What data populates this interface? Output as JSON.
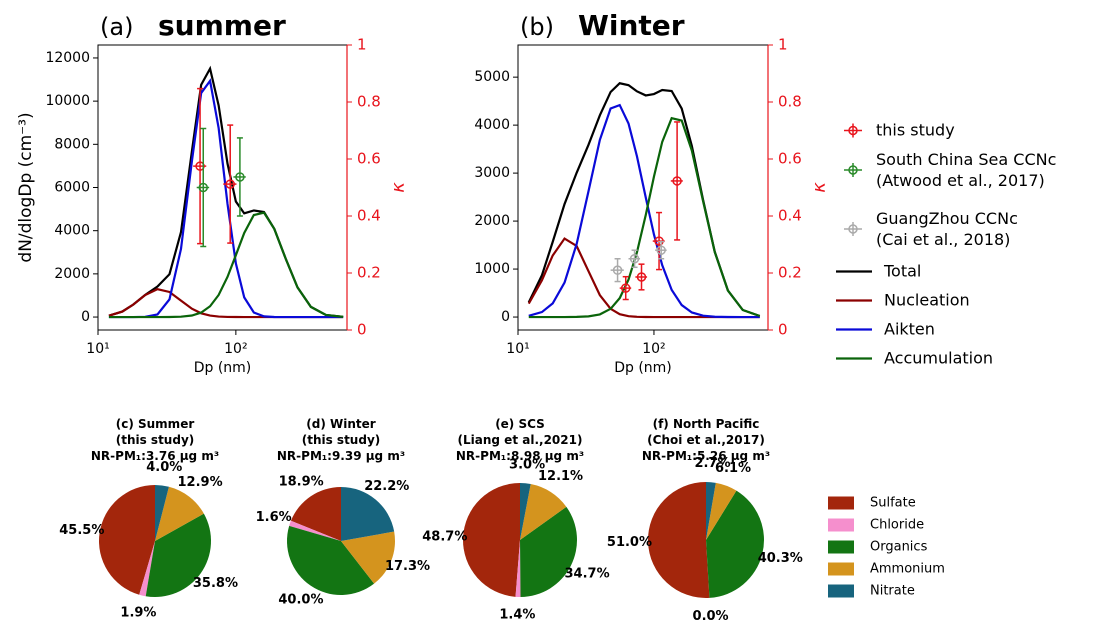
{
  "chart_data": [
    {
      "type": "line",
      "label": "(a)",
      "title": "summer",
      "xlabel": "Dp (nm)",
      "ylabel": "dN/dlogDp (cm⁻³)",
      "y2label": "κ",
      "log_x": true,
      "xlim": [
        10,
        640
      ],
      "xticks": [
        {
          "value": 10,
          "label": "10¹"
        },
        {
          "value": 100,
          "label": "10²"
        }
      ],
      "ylim": [
        -600,
        12600
      ],
      "yticks": [
        0,
        2000,
        4000,
        6000,
        8000,
        10000,
        12000
      ],
      "y2lim": [
        0,
        1
      ],
      "y2ticks": [
        0,
        0.2,
        0.4,
        0.6,
        0.8,
        1
      ],
      "y2color": "#e8141c",
      "x": [
        12,
        15,
        18,
        22,
        27,
        33,
        40,
        48,
        56,
        65,
        75,
        87,
        100,
        115,
        135,
        160,
        190,
        230,
        280,
        350,
        450,
        600
      ],
      "series": [
        {
          "color": "#000000",
          "values": [
            64,
            254,
            574,
            1028,
            1413,
            1984,
            3937,
            7683,
            10752,
            11506,
            9797,
            7104,
            5352,
            4803,
            4937,
            4865,
            4086,
            2700,
            1374,
            470,
            95,
            9
          ]
        },
        {
          "color": "#8b0000",
          "values": [
            64,
            254,
            574,
            1018,
            1293,
            1161,
            763,
            385,
            174,
            67,
            22,
            6,
            1,
            0,
            0,
            0,
            0,
            0,
            0,
            0,
            0,
            0
          ]
        },
        {
          "color": "#0a0ad8",
          "values": [
            0,
            0,
            0,
            10,
            120,
            820,
            3158,
            7227,
            10372,
            10939,
            8753,
            5237,
            2485,
            911,
            211,
            31,
            3,
            0,
            0,
            0,
            0,
            0
          ]
        },
        {
          "color": "#0a640a",
          "values": [
            0,
            0,
            0,
            0,
            0,
            3,
            16,
            71,
            206,
            500,
            1022,
            1861,
            2866,
            3892,
            4726,
            4834,
            4083,
            2700,
            1374,
            470,
            95,
            9
          ]
        }
      ],
      "error_series": [
        {
          "color": "#e8141c",
          "axis": "y2",
          "x": [
            55,
            91
          ],
          "xerr": [
            6,
            10
          ],
          "values": [
            0.575,
            0.512
          ],
          "yerr": [
            0.272,
            0.207
          ]
        },
        {
          "name": "South China Sea CCNc\n(Atwood et al., 2017)",
          "color": "#2a8a2a",
          "axis": "y2",
          "x": [
            58,
            107
          ],
          "xerr": [
            6,
            11
          ],
          "values": [
            0.5,
            0.537
          ],
          "yerr": [
            0.207,
            0.137
          ]
        }
      ]
    },
    {
      "type": "line",
      "label": "(b)",
      "title": "Winter",
      "xlabel": "Dp (nm)",
      "y2label": "κ",
      "log_x": true,
      "xlim": [
        10,
        690
      ],
      "xticks": [
        {
          "value": 10,
          "label": "10¹"
        },
        {
          "value": 100,
          "label": "10²"
        }
      ],
      "ylim": [
        -270,
        5670
      ],
      "yticks": [
        0,
        1000,
        2000,
        3000,
        4000,
        5000
      ],
      "y2lim": [
        0,
        1
      ],
      "y2ticks": [
        0,
        0.2,
        0.4,
        0.6,
        0.8,
        1
      ],
      "y2color": "#e8141c",
      "x": [
        12,
        15,
        18,
        22,
        27,
        33,
        40,
        48,
        56,
        65,
        75,
        87,
        100,
        115,
        135,
        160,
        190,
        230,
        280,
        350,
        450,
        600
      ],
      "series": [
        {
          "name": "Total",
          "color": "#000000",
          "values": [
            305,
            871,
            1567,
            2355,
            3007,
            3590,
            4204,
            4691,
            4873,
            4833,
            4704,
            4619,
            4648,
            4731,
            4711,
            4345,
            3564,
            2438,
            1361,
            553,
            147,
            22
          ]
        },
        {
          "name": "Nucleation",
          "color": "#8b0000",
          "values": [
            280,
            767,
            1283,
            1636,
            1481,
            955,
            457,
            171,
            60,
            18,
            5,
            1,
            0,
            0,
            0,
            0,
            0,
            0,
            0,
            0,
            0,
            0
          ]
        },
        {
          "name": "Aikten",
          "color": "#0a0ad8",
          "values": [
            25,
            104,
            284,
            719,
            1523,
            2621,
            3692,
            4348,
            4418,
            4034,
            3349,
            2494,
            1721,
            1081,
            567,
            250,
            95,
            28,
            6,
            1,
            0,
            0
          ]
        },
        {
          "name": "Accumulation",
          "color": "#0a640a",
          "values": [
            0,
            0,
            0,
            0,
            3,
            14,
            55,
            172,
            395,
            781,
            1350,
            2124,
            2927,
            3650,
            4144,
            4095,
            3469,
            2410,
            1355,
            552,
            147,
            22
          ]
        }
      ],
      "error_series": [
        {
          "name": "this study",
          "color": "#e8141c",
          "axis": "y2",
          "x": [
            62,
            81,
            109,
            148
          ],
          "xerr": [
            6,
            8,
            11,
            15
          ],
          "values": [
            0.147,
            0.186,
            0.312,
            0.523
          ],
          "yerr": [
            0.04,
            0.045,
            0.1,
            0.207
          ]
        },
        {
          "name": "GuangZhou CCNc\n(Cai et al., 2018)",
          "color": "#aaaaaa",
          "axis": "y2",
          "x": [
            54,
            72,
            113
          ],
          "xerr": [
            6,
            7,
            11
          ],
          "values": [
            0.21,
            0.25,
            0.28
          ],
          "yerr": [
            0.04,
            0.03,
            0.03
          ]
        }
      ]
    },
    {
      "type": "pie",
      "categories": [
        "Sulfate",
        "Chloride",
        "Organics",
        "Ammonium",
        "Nitrate"
      ],
      "colors": [
        "#a3260c",
        "#f58fcd",
        "#137513",
        "#d4941e",
        "#17647e"
      ],
      "pies": [
        {
          "title": "(c) Summer\n(this study)\nNR-PM₁:3.76 μg m³",
          "values": [
            45.5,
            1.9,
            35.8,
            12.9,
            4.0
          ],
          "value_labels": [
            "45.5%",
            "1.9%",
            "35.8%",
            "12.9%",
            "4.0%"
          ]
        },
        {
          "title": "(d) Winter\n(this study)\nNR-PM₁:9.39 μg m³",
          "values": [
            18.9,
            1.6,
            40.0,
            17.3,
            22.2
          ],
          "value_labels": [
            "18.9%",
            "1.6%",
            "40.0%",
            "17.3%",
            "22.2%"
          ]
        },
        {
          "title": "(e) SCS\n(Liang et al.,2021)\nNR-PM₁:8.98 μg m³",
          "values": [
            48.7,
            1.4,
            34.7,
            12.1,
            3.0
          ],
          "value_labels": [
            "48.7%",
            "1.4%",
            "34.7%",
            "12.1%",
            "3.0%"
          ]
        },
        {
          "title": "(f) North Pacific\n(Choi et al.,2017)\nNR-PM₁:5.26 μg m³",
          "values": [
            51.0,
            0.0,
            40.3,
            6.1,
            2.7
          ],
          "value_labels": [
            "51.0%",
            "0.0%",
            "40.3%",
            "6.1%",
            "2.7%"
          ]
        }
      ]
    }
  ]
}
